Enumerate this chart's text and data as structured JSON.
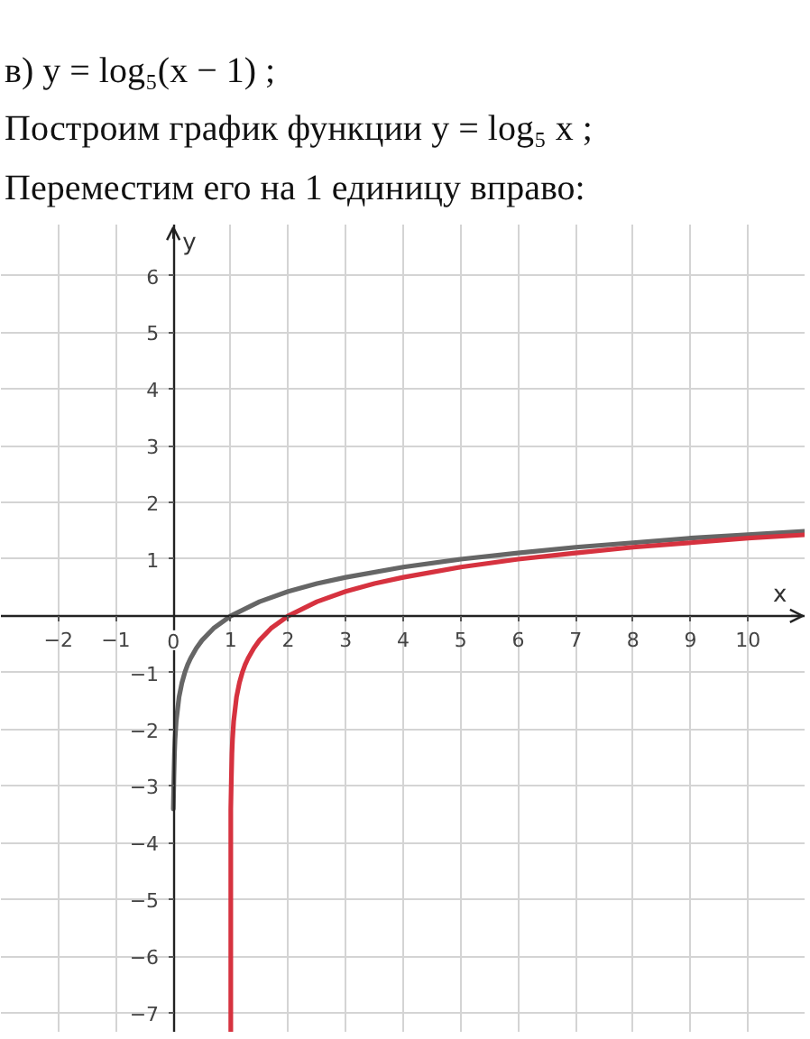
{
  "chart_data": {
    "type": "line",
    "title": "в) y = log₅(x − 1) ;",
    "annotations": [
      "Построим график функции y = log₅ x ;",
      "Переместим его на 1 единицу вправо:"
    ],
    "xlabel": "x",
    "ylabel": "y",
    "xlim": [
      -3,
      11
    ],
    "ylim": [
      -7.35,
      6.9
    ],
    "xticks": [
      -2,
      -1,
      0,
      1,
      2,
      3,
      4,
      5,
      6,
      7,
      8,
      9,
      10
    ],
    "yticks": [
      -7,
      -6,
      -5,
      -4,
      -3,
      -2,
      -1,
      1,
      2,
      3,
      4,
      5,
      6
    ],
    "grid": true,
    "series": [
      {
        "color": "#666666",
        "x": [
          0,
          0.01,
          0.02,
          0.03,
          0.05,
          0.1,
          0.15,
          0.2,
          0.25,
          0.3,
          0.4,
          0.5,
          0.7,
          1,
          1.5,
          2,
          2.5,
          3,
          4,
          5,
          6,
          7,
          8,
          9,
          10,
          11
        ],
        "values": [
          -3.4,
          -2.86,
          -2.43,
          -2.18,
          -1.86,
          -1.43,
          -1.18,
          -1.0,
          -0.86,
          -0.75,
          -0.57,
          -0.43,
          -0.22,
          0,
          0.25,
          0.43,
          0.57,
          0.68,
          0.86,
          1.0,
          1.11,
          1.21,
          1.29,
          1.37,
          1.43,
          1.49
        ]
      },
      {
        "color": "#d6323f",
        "x": [
          1,
          1,
          1.01,
          1.02,
          1.03,
          1.05,
          1.1,
          1.15,
          1.2,
          1.25,
          1.3,
          1.4,
          1.5,
          1.7,
          2,
          2.5,
          3,
          3.5,
          4,
          5,
          6,
          7,
          8,
          9,
          10,
          11
        ],
        "values": [
          -7.35,
          -3.4,
          -2.86,
          -2.43,
          -2.18,
          -1.86,
          -1.43,
          -1.18,
          -1.0,
          -0.86,
          -0.75,
          -0.57,
          -0.43,
          -0.22,
          0,
          0.25,
          0.43,
          0.57,
          0.68,
          0.86,
          1.0,
          1.11,
          1.21,
          1.29,
          1.37,
          1.43
        ]
      }
    ]
  }
}
